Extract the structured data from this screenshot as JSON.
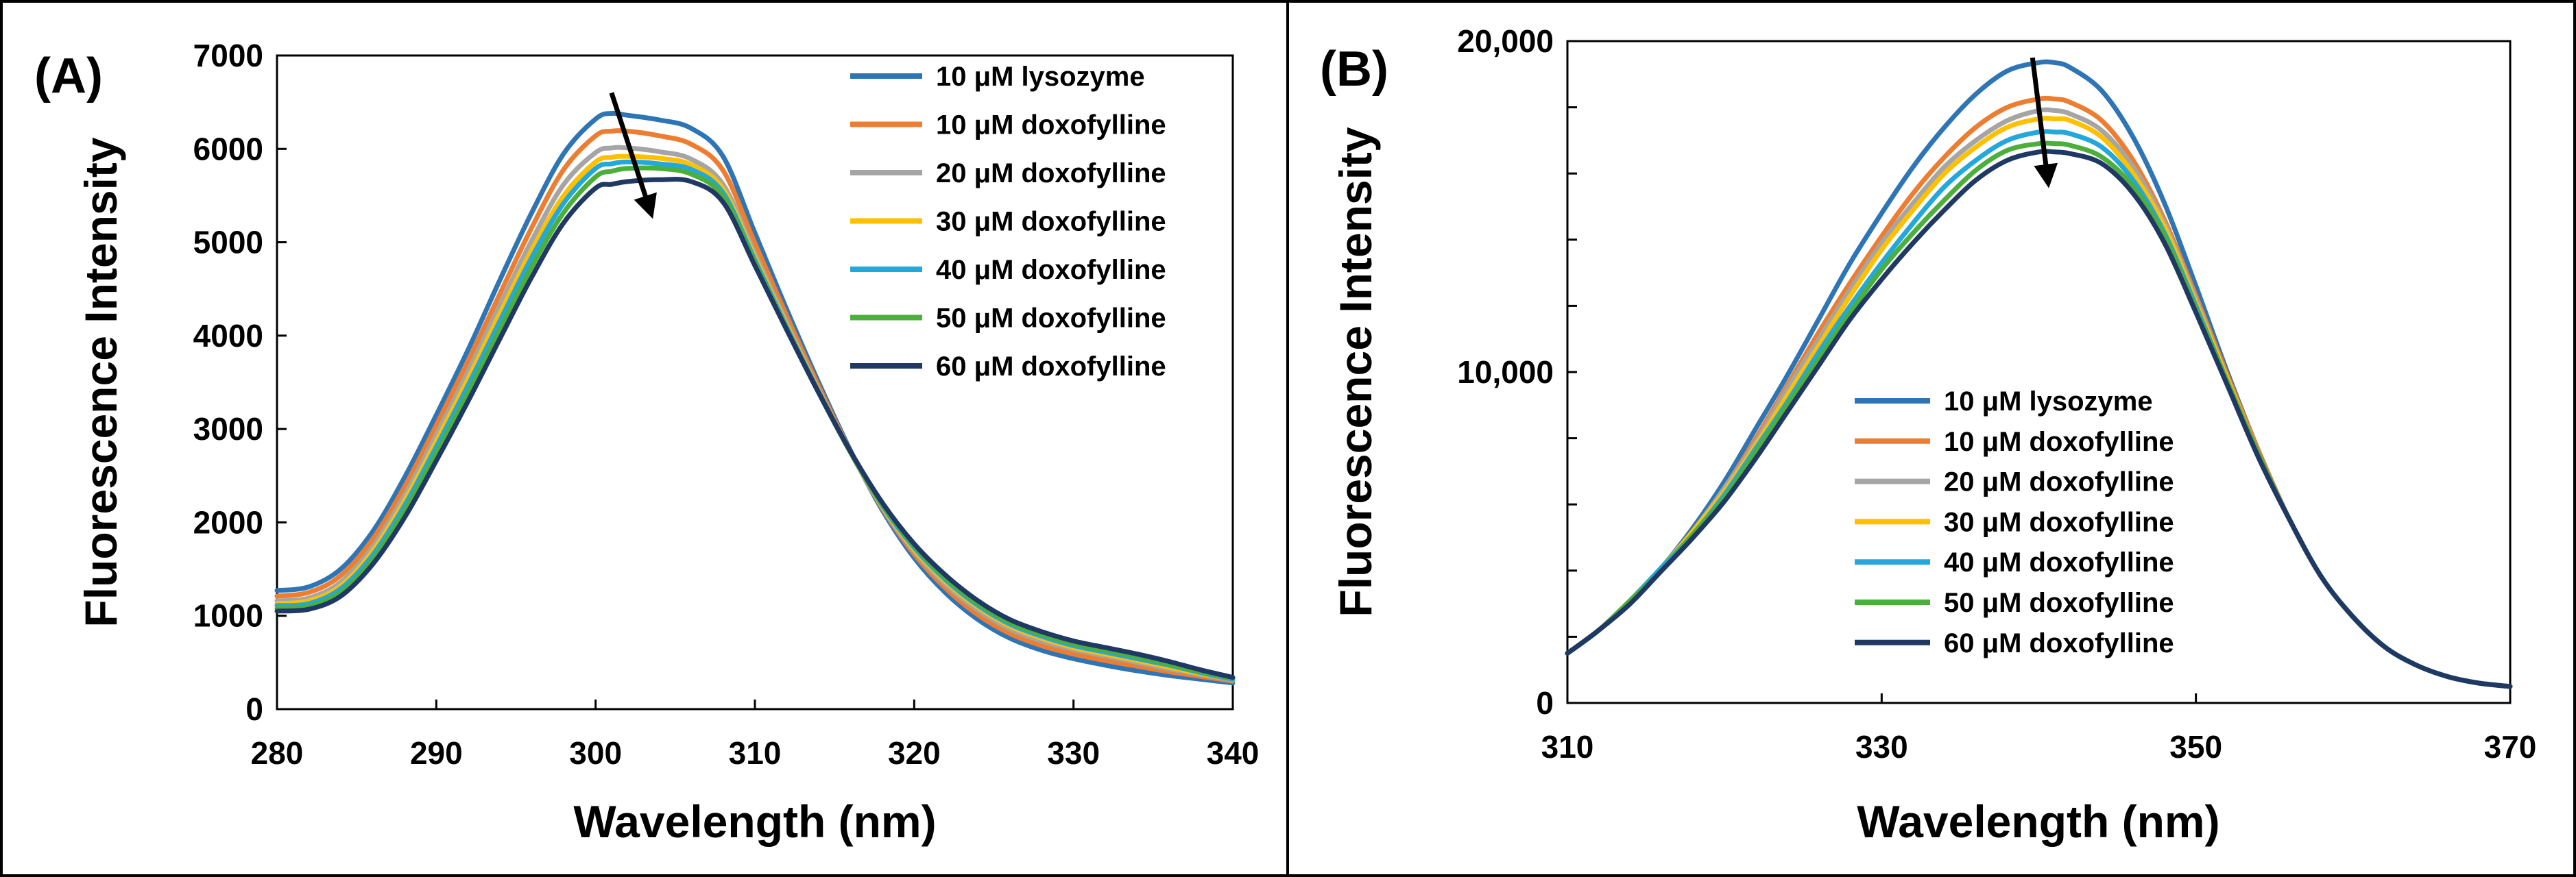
{
  "chart_data": [
    {
      "type": "line",
      "panel_label": "(A)",
      "xlabel": "Wavelength (nm)",
      "ylabel": "Fluorescence Intensity",
      "xlim": [
        280,
        340
      ],
      "ylim": [
        0,
        7000
      ],
      "x_ticks": [
        280,
        290,
        300,
        310,
        320,
        330,
        340
      ],
      "y_ticks": [
        0,
        1000,
        2000,
        3000,
        4000,
        5000,
        6000,
        7000
      ],
      "x_tick_labels": [
        "280",
        "290",
        "300",
        "310",
        "320",
        "330",
        "340"
      ],
      "y_tick_labels": [
        "0",
        "1000",
        "2000",
        "3000",
        "4000",
        "5000",
        "6000",
        "7000"
      ],
      "legend_position": "top-right",
      "arrow": {
        "from": [
          301,
          6600
        ],
        "to": [
          303.5,
          5300
        ]
      },
      "x": [
        280,
        282,
        284,
        286,
        288,
        290,
        292,
        294,
        296,
        298,
        300,
        301,
        302,
        304,
        306,
        308,
        310,
        312,
        314,
        316,
        318,
        320,
        322,
        324,
        326,
        328,
        330,
        332,
        334,
        336,
        338,
        340
      ],
      "series": [
        {
          "name": "10 μM lysozyme",
          "color": "#2E75B6",
          "values": [
            1270,
            1310,
            1500,
            1900,
            2480,
            3150,
            3850,
            4600,
            5320,
            5950,
            6320,
            6380,
            6360,
            6310,
            6220,
            5920,
            5100,
            4280,
            3500,
            2770,
            2130,
            1620,
            1240,
            960,
            760,
            630,
            540,
            470,
            410,
            360,
            320,
            280
          ]
        },
        {
          "name": "10 μM doxofylline",
          "color": "#ED7D31",
          "values": [
            1210,
            1250,
            1430,
            1820,
            2380,
            3040,
            3730,
            4450,
            5160,
            5780,
            6140,
            6190,
            6190,
            6140,
            6050,
            5770,
            4990,
            4210,
            3460,
            2760,
            2150,
            1660,
            1290,
            1010,
            810,
            680,
            590,
            520,
            460,
            400,
            350,
            300
          ]
        },
        {
          "name": "20 μM doxofylline",
          "color": "#A5A5A5",
          "values": [
            1160,
            1190,
            1360,
            1740,
            2290,
            2940,
            3620,
            4330,
            5020,
            5620,
            5960,
            6010,
            6010,
            5970,
            5890,
            5620,
            4880,
            4140,
            3420,
            2750,
            2160,
            1690,
            1330,
            1060,
            860,
            730,
            640,
            570,
            500,
            430,
            370,
            310
          ]
        },
        {
          "name": "30 μM doxofylline",
          "color": "#FFC000",
          "values": [
            1130,
            1160,
            1320,
            1690,
            2230,
            2870,
            3540,
            4240,
            4920,
            5500,
            5860,
            5910,
            5920,
            5900,
            5830,
            5570,
            4840,
            4110,
            3410,
            2750,
            2170,
            1710,
            1360,
            1090,
            890,
            760,
            660,
            590,
            520,
            450,
            380,
            320
          ]
        },
        {
          "name": "40 μM doxofylline",
          "color": "#23A8DC",
          "values": [
            1110,
            1130,
            1290,
            1650,
            2180,
            2810,
            3470,
            4160,
            4840,
            5420,
            5790,
            5840,
            5860,
            5840,
            5780,
            5530,
            4810,
            4090,
            3400,
            2750,
            2180,
            1730,
            1380,
            1110,
            910,
            780,
            680,
            610,
            540,
            470,
            390,
            320
          ]
        },
        {
          "name": "50 μM doxofylline",
          "color": "#4CAF3C",
          "values": [
            1080,
            1100,
            1250,
            1600,
            2120,
            2740,
            3390,
            4070,
            4740,
            5320,
            5700,
            5760,
            5790,
            5790,
            5730,
            5490,
            4780,
            4070,
            3390,
            2750,
            2190,
            1750,
            1400,
            1130,
            930,
            800,
            700,
            630,
            560,
            480,
            400,
            330
          ]
        },
        {
          "name": "60 μM doxofylline",
          "color": "#1F3864",
          "values": [
            1050,
            1070,
            1210,
            1550,
            2050,
            2660,
            3300,
            3970,
            4630,
            5210,
            5580,
            5620,
            5650,
            5670,
            5650,
            5430,
            4750,
            4060,
            3390,
            2760,
            2210,
            1770,
            1430,
            1160,
            960,
            830,
            730,
            660,
            590,
            510,
            420,
            340
          ]
        }
      ]
    },
    {
      "type": "line",
      "panel_label": "(B)",
      "xlabel": "Wavelength (nm)",
      "ylabel": "Fluorescence Intensity",
      "xlim": [
        310,
        370
      ],
      "ylim": [
        0,
        20000
      ],
      "x_ticks": [
        310,
        330,
        350,
        370
      ],
      "y_ticks": [
        0,
        10000,
        20000
      ],
      "x_tick_labels": [
        "310",
        "330",
        "350",
        "370"
      ],
      "y_tick_labels": [
        "0",
        "10,000",
        "20,000"
      ],
      "y_minor_ticks": [
        2000,
        4000,
        6000,
        8000,
        12000,
        14000,
        16000,
        18000
      ],
      "legend_position": "center-left",
      "arrow": {
        "from": [
          339.6,
          19500
        ],
        "to": [
          340.6,
          15700
        ]
      },
      "x": [
        310,
        312,
        314,
        316,
        318,
        320,
        322,
        324,
        326,
        328,
        330,
        332,
        334,
        336,
        338,
        340,
        341,
        342,
        344,
        346,
        348,
        350,
        352,
        354,
        356,
        358,
        360,
        362,
        364,
        366,
        368,
        370
      ],
      "series": [
        {
          "name": "10 μM lysozyme",
          "color": "#2E75B6",
          "values": [
            1500,
            2200,
            3100,
            4100,
            5300,
            6700,
            8300,
            9900,
            11600,
            13300,
            14800,
            16200,
            17400,
            18400,
            19100,
            19350,
            19350,
            19200,
            18500,
            17100,
            15100,
            12600,
            10000,
            7600,
            5500,
            3800,
            2600,
            1700,
            1150,
            800,
            600,
            500
          ]
        },
        {
          "name": "10 μM doxofylline",
          "color": "#ED7D31",
          "values": [
            1500,
            2200,
            3100,
            4100,
            5200,
            6500,
            8000,
            9600,
            11200,
            12700,
            14100,
            15400,
            16500,
            17400,
            18000,
            18250,
            18250,
            18150,
            17600,
            16400,
            14600,
            12300,
            9900,
            7600,
            5500,
            3800,
            2600,
            1700,
            1150,
            800,
            600,
            500
          ]
        },
        {
          "name": "20 μM doxofylline",
          "color": "#A5A5A5",
          "values": [
            1500,
            2200,
            3100,
            4100,
            5200,
            6500,
            7900,
            9500,
            11000,
            12500,
            13900,
            15100,
            16200,
            17000,
            17600,
            17900,
            17900,
            17800,
            17300,
            16200,
            14500,
            12200,
            9800,
            7500,
            5500,
            3800,
            2600,
            1700,
            1150,
            800,
            600,
            500
          ]
        },
        {
          "name": "30 μM doxofylline",
          "color": "#FFC000",
          "values": [
            1500,
            2200,
            3100,
            4100,
            5200,
            6400,
            7800,
            9300,
            10800,
            12300,
            13700,
            14900,
            16000,
            16800,
            17400,
            17650,
            17650,
            17600,
            17100,
            16000,
            14400,
            12100,
            9800,
            7500,
            5500,
            3800,
            2600,
            1700,
            1150,
            800,
            600,
            500
          ]
        },
        {
          "name": "40 μM doxofylline",
          "color": "#23A8DC",
          "values": [
            1500,
            2200,
            3100,
            4100,
            5100,
            6300,
            7700,
            9100,
            10600,
            12000,
            13300,
            14500,
            15600,
            16400,
            17000,
            17250,
            17250,
            17200,
            16800,
            15800,
            14200,
            12000,
            9700,
            7500,
            5500,
            3800,
            2600,
            1700,
            1150,
            800,
            600,
            500
          ]
        },
        {
          "name": "50 μM doxofylline",
          "color": "#4CAF3C",
          "values": [
            1500,
            2200,
            3100,
            4000,
            5100,
            6200,
            7600,
            9000,
            10400,
            11800,
            13100,
            14200,
            15200,
            16100,
            16700,
            16900,
            16900,
            16850,
            16500,
            15600,
            14100,
            11900,
            9700,
            7500,
            5500,
            3800,
            2600,
            1700,
            1150,
            800,
            600,
            500
          ]
        },
        {
          "name": "60 μM doxofylline",
          "color": "#1F3864",
          "values": [
            1500,
            2200,
            3000,
            4000,
            5000,
            6100,
            7400,
            8800,
            10200,
            11600,
            12800,
            13900,
            14900,
            15800,
            16400,
            16650,
            16650,
            16600,
            16300,
            15400,
            13900,
            11800,
            9600,
            7400,
            5500,
            3800,
            2600,
            1700,
            1150,
            800,
            600,
            500
          ]
        }
      ]
    }
  ]
}
